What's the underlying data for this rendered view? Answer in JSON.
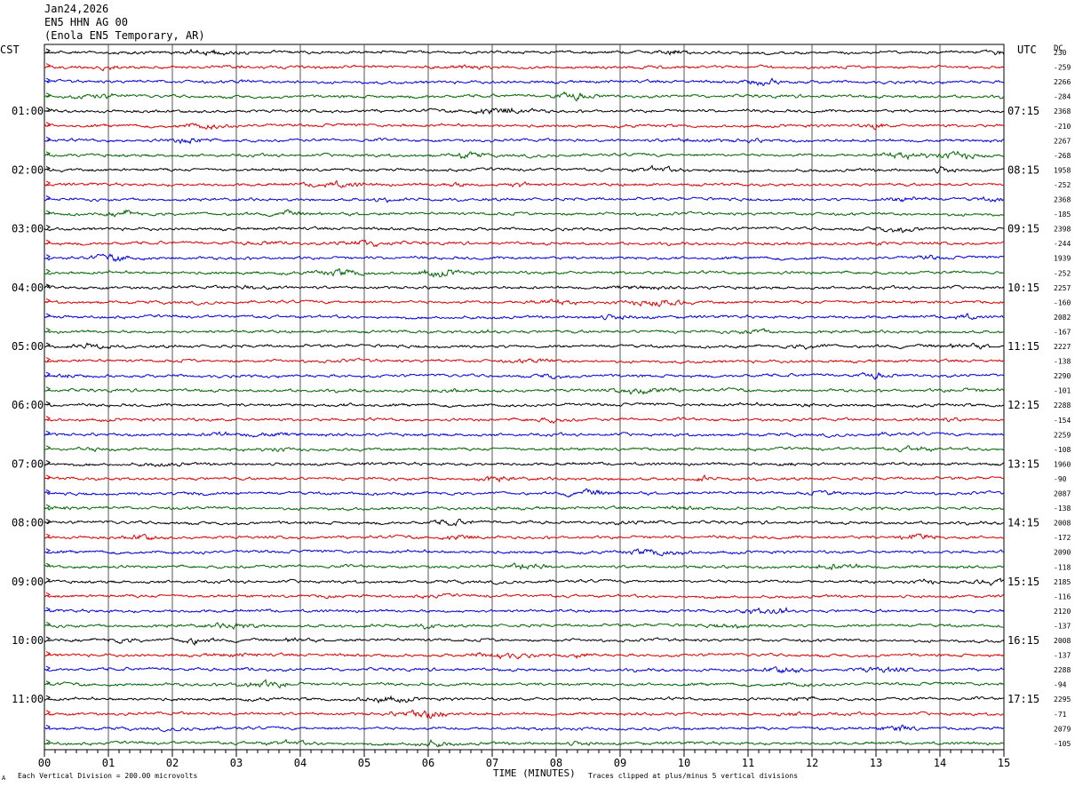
{
  "header": {
    "date": "Jan24,2026",
    "station": "EN5 HHN AG 00",
    "location": "(Enola EN5 Temporary, AR)"
  },
  "timezones": {
    "left": "CST",
    "right": "UTC",
    "dc_label": "DC"
  },
  "footer": {
    "scale_note": "Each Vertical Division =  200.00 microvolts",
    "xlabel": "TIME (MINUTES)",
    "clip_note": "Traces clipped at plus/minus 5 vertical divisions",
    "corner_mark": "A"
  },
  "colors": {
    "cycle": [
      "#000000",
      "#dd0000",
      "#0000dd",
      "#006600"
    ],
    "grid": "#000000"
  },
  "chart_data": {
    "type": "line",
    "xlabel": "TIME (MINUTES)",
    "xlim": [
      0,
      15
    ],
    "x_ticks": [
      "00",
      "01",
      "02",
      "03",
      "04",
      "05",
      "06",
      "07",
      "08",
      "09",
      "10",
      "11",
      "12",
      "13",
      "14",
      "15"
    ],
    "left_hour_labels": [
      "01:00",
      "02:00",
      "03:00",
      "04:00",
      "05:00",
      "06:00",
      "07:00",
      "08:00",
      "09:00",
      "10:00",
      "11:00"
    ],
    "right_hour_labels": [
      "07:15",
      "08:15",
      "09:15",
      "10:15",
      "11:15",
      "12:15",
      "13:15",
      "14:15",
      "15:15",
      "16:15",
      "17:15"
    ],
    "trace_count": 48,
    "dc_offsets": [
      "230",
      "-259",
      "2266",
      "-284",
      "2368",
      "-210",
      "2267",
      "-268",
      "1958",
      "-252",
      "2368",
      "-185",
      "2398",
      "-244",
      "1939",
      "-252",
      "2257",
      "-160",
      "2082",
      "-167",
      "2227",
      "-138",
      "2290",
      "-101",
      "2288",
      "-154",
      "2259",
      "-108",
      "1960",
      "-90",
      "2087",
      "-138",
      "2008",
      "-172",
      "2090",
      "-118",
      "2185",
      "-116",
      "2120",
      "-137",
      "2008",
      "-137",
      "2288",
      "-94",
      "2295",
      "-71",
      "2079",
      "-105"
    ]
  }
}
